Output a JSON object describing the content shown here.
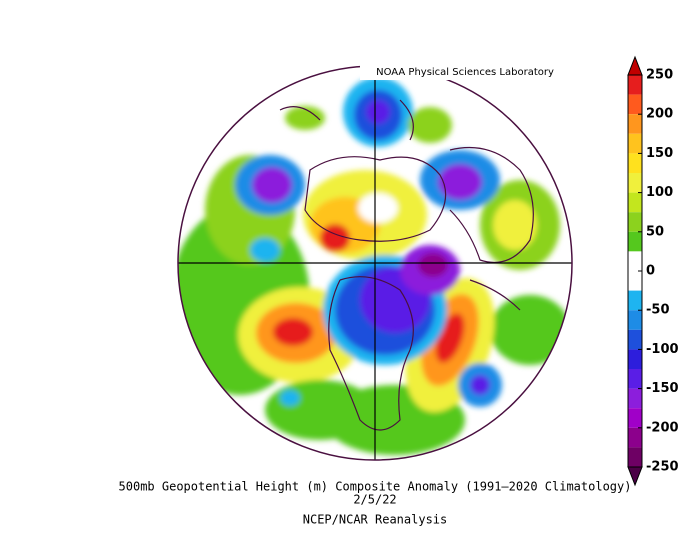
{
  "credit": "NOAA Physical Sciences Laboratory",
  "title": "500mb Geopotential Height (m) Composite Anomaly (1991–2020 Climatology)",
  "date": "2/5/22",
  "source": "NCEP/NCAR Reanalysis",
  "colorbar": {
    "ticks": [
      250,
      200,
      150,
      100,
      50,
      0,
      -50,
      -100,
      -150,
      -200,
      -250
    ],
    "bounds": [
      250,
      225,
      200,
      175,
      150,
      125,
      100,
      75,
      50,
      25,
      0,
      -25,
      -50,
      -75,
      -100,
      -125,
      -150,
      -175,
      -200,
      -225,
      -250
    ],
    "colors": [
      "#e61e1e",
      "#ff5a1e",
      "#ff961e",
      "#ffc31e",
      "#ffe11e",
      "#f0f03c",
      "#c3e61e",
      "#8cd21e",
      "#55c81e",
      "#ffffff",
      "#ffffff",
      "#1eb4f0",
      "#1e8ce6",
      "#1e50dc",
      "#2d1edc",
      "#5a1ee6",
      "#8c1edc",
      "#a000c8",
      "#8c008c",
      "#6e0064"
    ],
    "extend_colors": [
      "#c00000",
      "#4b0046"
    ]
  }
}
